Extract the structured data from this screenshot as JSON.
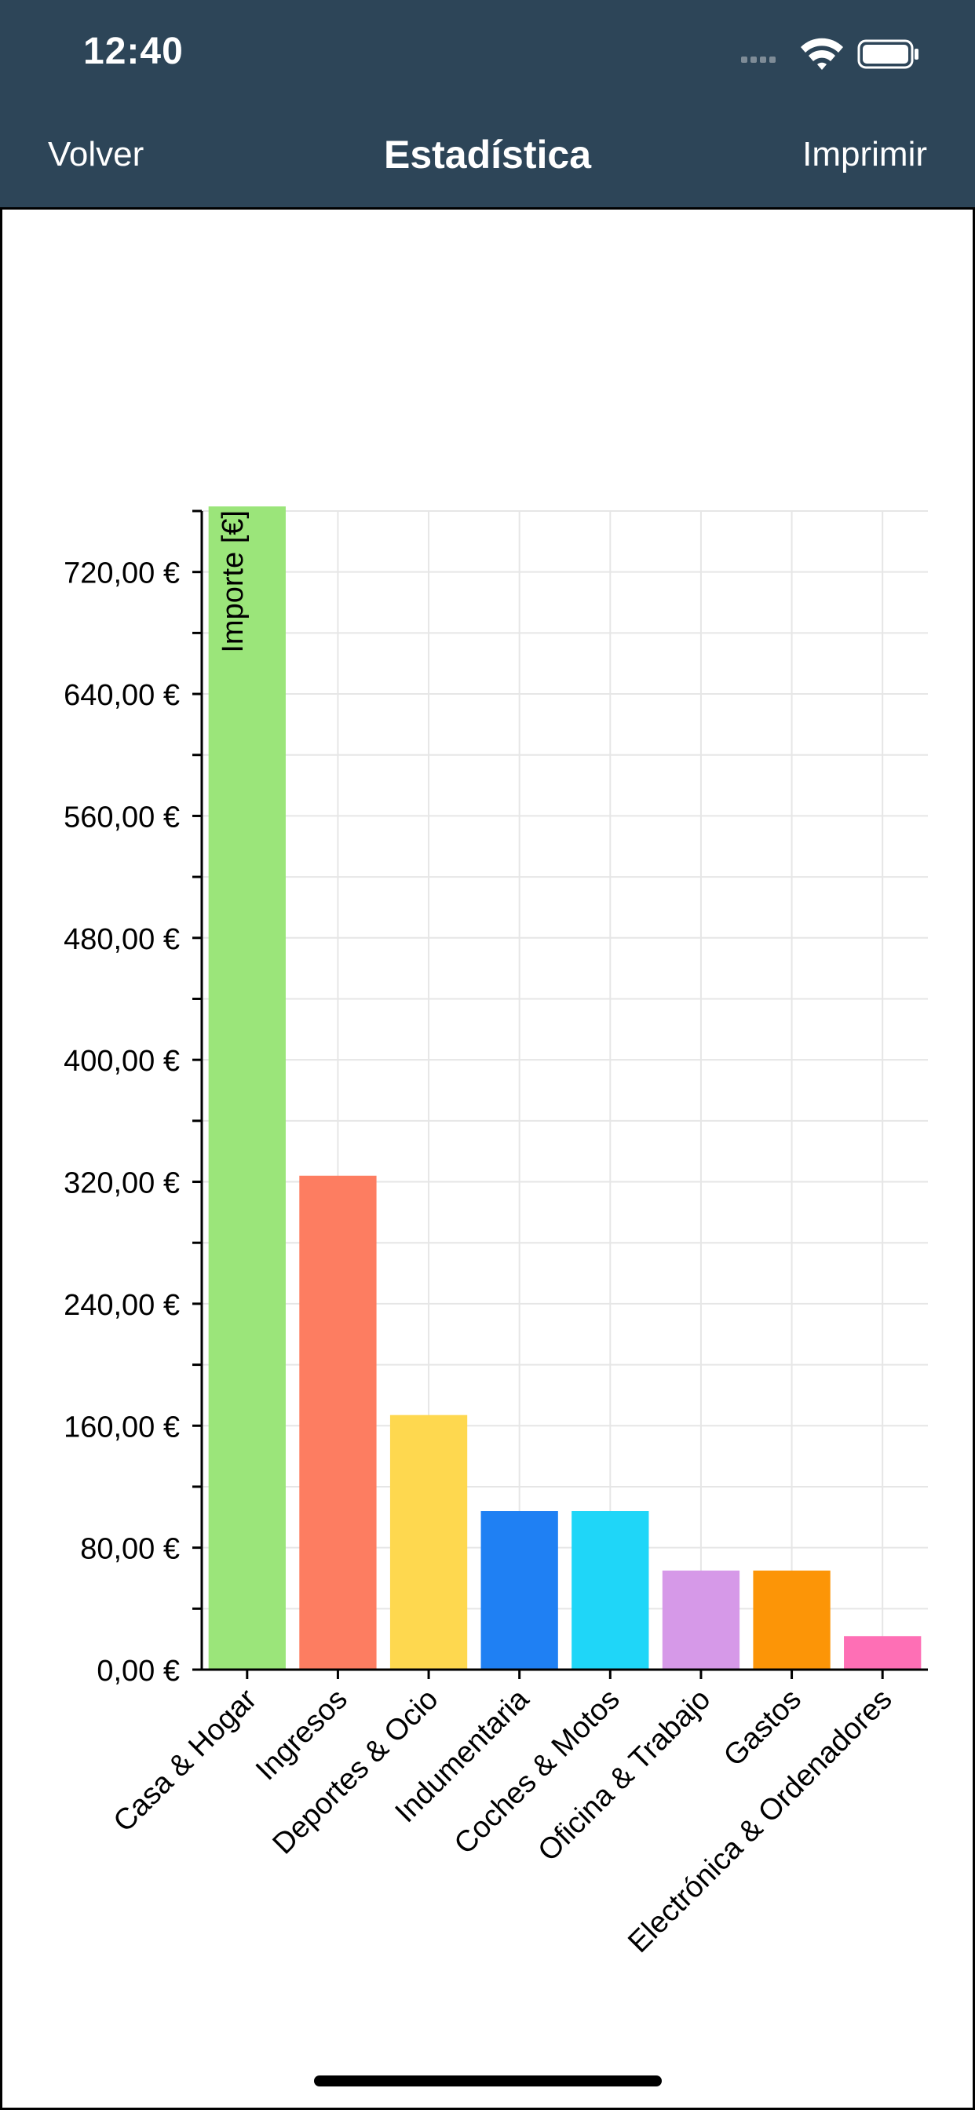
{
  "status_bar": {
    "time": "12:40"
  },
  "nav": {
    "back_label": "Volver",
    "title": "Estadística",
    "action_label": "Imprimir"
  },
  "colors": {
    "header_bg": "#2d4558",
    "grid": "#e6e6e6",
    "axis": "#000000"
  },
  "chart_data": {
    "type": "bar",
    "title": "",
    "xlabel": "",
    "ylabel": "Importe [€]",
    "ylim": [
      0,
      760
    ],
    "y_ticks": [
      0,
      80,
      160,
      240,
      320,
      400,
      480,
      560,
      640,
      720
    ],
    "y_tick_labels": [
      "0,00 €",
      "80,00 €",
      "160,00 €",
      "240,00 €",
      "320,00 €",
      "400,00 €",
      "480,00 €",
      "560,00 €",
      "640,00 €",
      "720,00 €"
    ],
    "categories": [
      "Casa & Hogar",
      "Ingresos",
      "Deportes & Ocio",
      "Indumentaria",
      "Coches & Motos",
      "Oficina & Trabajo",
      "Gastos",
      "Electrónica & Ordenadores"
    ],
    "values": [
      763,
      324,
      167,
      104,
      104,
      65,
      65,
      22
    ],
    "bar_colors": [
      "#9be57a",
      "#fd7d61",
      "#fed84f",
      "#1f80f3",
      "#1fd6f8",
      "#d699e8",
      "#fc9507",
      "#fe6fb5"
    ],
    "grid": true,
    "legend": "none"
  }
}
